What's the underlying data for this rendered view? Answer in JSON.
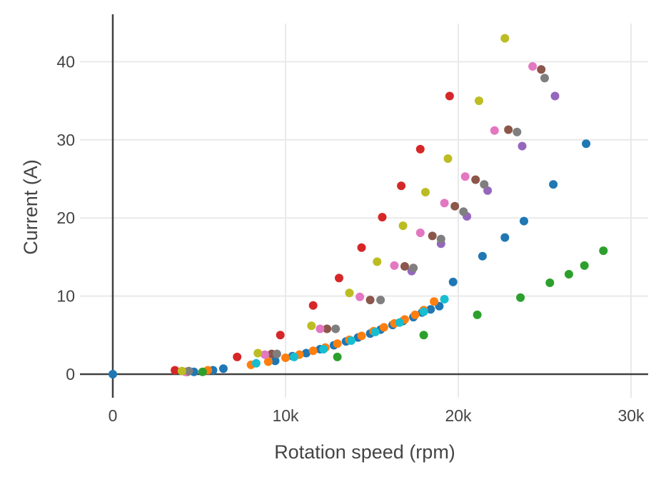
{
  "figure": {
    "background": "#ffffff",
    "text_color": "#444444",
    "grid_color": "#e9e9e9",
    "zeroline_color": "#404040"
  },
  "chart_data": {
    "type": "scatter",
    "title": "",
    "xlabel": "Rotation speed (rpm)",
    "ylabel": "Current (A)",
    "grid": true,
    "legend": false,
    "x_axis": {
      "unit": "rpm",
      "range": [
        -1900,
        31100
      ],
      "ticks": [
        {
          "v": 0,
          "label": "0"
        },
        {
          "v": 10000,
          "label": "10k"
        },
        {
          "v": 20000,
          "label": "20k"
        },
        {
          "v": 30000,
          "label": "30k"
        }
      ]
    },
    "y_axis": {
      "unit": "A",
      "range": [
        -3,
        45
      ],
      "ticks": [
        {
          "v": 0,
          "label": "0"
        },
        {
          "v": 10,
          "label": "10"
        },
        {
          "v": 20,
          "label": "20"
        },
        {
          "v": 30,
          "label": "30"
        },
        {
          "v": 40,
          "label": "40"
        }
      ]
    },
    "series": [
      {
        "name": "blue",
        "color": "#1f77b4",
        "points": [
          [
            0,
            0
          ],
          [
            4700,
            0.3
          ],
          [
            5800,
            0.5
          ],
          [
            6400,
            0.7
          ],
          [
            9400,
            1.7
          ],
          [
            10400,
            2.3
          ],
          [
            11200,
            2.7
          ],
          [
            12000,
            3.2
          ],
          [
            12800,
            3.7
          ],
          [
            13500,
            4.2
          ],
          [
            14200,
            4.7
          ],
          [
            14900,
            5.2
          ],
          [
            15500,
            5.7
          ],
          [
            16200,
            6.3
          ],
          [
            16800,
            6.8
          ],
          [
            17400,
            7.3
          ],
          [
            17900,
            7.9
          ],
          [
            18400,
            8.3
          ],
          [
            18900,
            8.7
          ],
          [
            19700,
            11.8
          ],
          [
            21400,
            15.1
          ],
          [
            22700,
            17.5
          ],
          [
            23800,
            19.6
          ],
          [
            25500,
            24.3
          ],
          [
            27400,
            29.5
          ]
        ]
      },
      {
        "name": "orange",
        "color": "#ff7f0e",
        "points": [
          [
            5500,
            0.5
          ],
          [
            8000,
            1.2
          ],
          [
            9000,
            1.6
          ],
          [
            10000,
            2.1
          ],
          [
            10800,
            2.5
          ],
          [
            11600,
            3.0
          ],
          [
            12300,
            3.4
          ],
          [
            13000,
            3.9
          ],
          [
            13700,
            4.4
          ],
          [
            14400,
            4.9
          ],
          [
            15100,
            5.5
          ],
          [
            15700,
            6.0
          ],
          [
            16300,
            6.5
          ],
          [
            16900,
            7.0
          ],
          [
            17500,
            7.6
          ],
          [
            18000,
            8.2
          ],
          [
            18600,
            9.3
          ]
        ]
      },
      {
        "name": "green",
        "color": "#2ca02c",
        "points": [
          [
            5200,
            0.3
          ],
          [
            13000,
            2.2
          ],
          [
            18000,
            5.0
          ],
          [
            21100,
            7.6
          ],
          [
            23600,
            9.8
          ],
          [
            25300,
            11.7
          ],
          [
            26400,
            12.8
          ],
          [
            27300,
            13.9
          ],
          [
            28400,
            15.8
          ]
        ]
      },
      {
        "name": "red",
        "color": "#d62728",
        "points": [
          [
            3600,
            0.5
          ],
          [
            7200,
            2.2
          ],
          [
            9700,
            5.0
          ],
          [
            11600,
            8.8
          ],
          [
            13100,
            12.3
          ],
          [
            14400,
            16.2
          ],
          [
            15600,
            20.1
          ],
          [
            16700,
            24.1
          ],
          [
            17800,
            28.8
          ],
          [
            19500,
            35.6
          ]
        ]
      },
      {
        "name": "purple",
        "color": "#9467bd",
        "points": [
          [
            17300,
            13.2
          ],
          [
            19000,
            16.7
          ],
          [
            20500,
            20.2
          ],
          [
            21700,
            23.5
          ],
          [
            23700,
            29.2
          ],
          [
            25600,
            35.6
          ]
        ]
      },
      {
        "name": "brown",
        "color": "#8c564b",
        "points": [
          [
            4300,
            0.3
          ],
          [
            9200,
            2.6
          ],
          [
            12400,
            5.8
          ],
          [
            14900,
            9.5
          ],
          [
            16900,
            13.8
          ],
          [
            18500,
            17.7
          ],
          [
            19800,
            21.5
          ],
          [
            21000,
            24.9
          ],
          [
            22900,
            31.3
          ],
          [
            24800,
            39.0
          ]
        ]
      },
      {
        "name": "pink",
        "color": "#e377c2",
        "points": [
          [
            4200,
            0.3
          ],
          [
            8800,
            2.5
          ],
          [
            12000,
            5.8
          ],
          [
            14300,
            9.9
          ],
          [
            16300,
            13.9
          ],
          [
            17800,
            18.1
          ],
          [
            19200,
            21.9
          ],
          [
            20400,
            25.3
          ],
          [
            22100,
            31.2
          ],
          [
            24300,
            39.4
          ]
        ]
      },
      {
        "name": "gray",
        "color": "#7f7f7f",
        "points": [
          [
            4400,
            0.4
          ],
          [
            9500,
            2.6
          ],
          [
            12900,
            5.8
          ],
          [
            15500,
            9.5
          ],
          [
            17400,
            13.6
          ],
          [
            19000,
            17.3
          ],
          [
            20300,
            20.8
          ],
          [
            21500,
            24.3
          ],
          [
            23400,
            31.0
          ],
          [
            25000,
            37.9
          ]
        ]
      },
      {
        "name": "olive",
        "color": "#bcbd22",
        "points": [
          [
            4000,
            0.4
          ],
          [
            8400,
            2.7
          ],
          [
            11500,
            6.2
          ],
          [
            13700,
            10.4
          ],
          [
            15300,
            14.4
          ],
          [
            16800,
            19.0
          ],
          [
            18100,
            23.3
          ],
          [
            19400,
            27.6
          ],
          [
            21200,
            35.0
          ],
          [
            22700,
            43.0
          ]
        ]
      },
      {
        "name": "cyan",
        "color": "#17becf",
        "points": [
          [
            8300,
            1.4
          ],
          [
            10500,
            2.2
          ],
          [
            12200,
            3.2
          ],
          [
            13800,
            4.3
          ],
          [
            15200,
            5.4
          ],
          [
            16600,
            6.6
          ],
          [
            18000,
            8.0
          ],
          [
            19200,
            9.6
          ]
        ]
      }
    ]
  }
}
